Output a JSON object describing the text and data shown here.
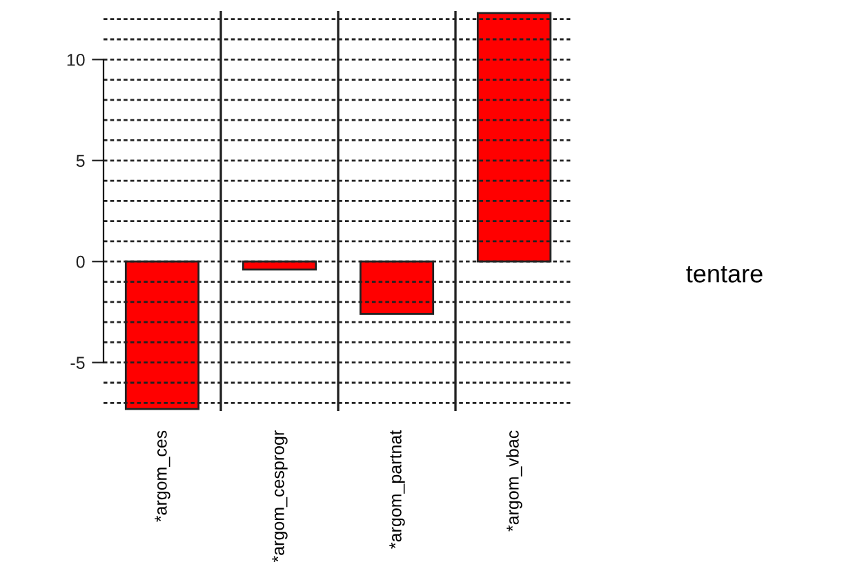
{
  "chart_data": {
    "type": "bar",
    "categories": [
      "*argom_ces",
      "*argom_cesprogr",
      "*argom_partnat",
      "*argom_vbac"
    ],
    "values": [
      -7.3,
      -0.4,
      -2.6,
      12.3
    ],
    "color": "#ff0000",
    "ylim": [
      -7.4,
      12.4
    ],
    "yticks": [
      -5,
      0,
      5,
      10
    ],
    "grid": false,
    "ref_lines": [
      {
        "axis": "y",
        "value": -7,
        "color": "#222222",
        "line_style": "dotted"
      },
      {
        "axis": "y",
        "value": -6,
        "color": "#222222",
        "line_style": "dotted"
      },
      {
        "axis": "y",
        "value": -5,
        "color": "#222222",
        "line_style": "dotted"
      },
      {
        "axis": "y",
        "value": -4,
        "color": "#222222",
        "line_style": "dotted"
      },
      {
        "axis": "y",
        "value": -3,
        "color": "#222222",
        "line_style": "dotted"
      },
      {
        "axis": "y",
        "value": -2,
        "color": "#222222",
        "line_style": "dotted"
      },
      {
        "axis": "y",
        "value": -1,
        "color": "#222222",
        "line_style": "dotted"
      },
      {
        "axis": "y",
        "value": 0,
        "color": "#222222",
        "line_style": "dotted"
      },
      {
        "axis": "y",
        "value": 1,
        "color": "#222222",
        "line_style": "dotted"
      },
      {
        "axis": "y",
        "value": 2,
        "color": "#222222",
        "line_style": "dotted"
      },
      {
        "axis": "y",
        "value": 3,
        "color": "#222222",
        "line_style": "dotted"
      },
      {
        "axis": "y",
        "value": 4,
        "color": "#222222",
        "line_style": "dotted"
      },
      {
        "axis": "y",
        "value": 5,
        "color": "#222222",
        "line_style": "dotted"
      },
      {
        "axis": "y",
        "value": 6,
        "color": "#222222",
        "line_style": "dotted"
      },
      {
        "axis": "y",
        "value": 7,
        "color": "#222222",
        "line_style": "dotted"
      },
      {
        "axis": "y",
        "value": 8,
        "color": "#222222",
        "line_style": "dotted"
      },
      {
        "axis": "y",
        "value": 9,
        "color": "#222222",
        "line_style": "dotted"
      },
      {
        "axis": "y",
        "value": 10,
        "color": "#222222",
        "line_style": "dotted"
      },
      {
        "axis": "y",
        "value": 11,
        "color": "#222222",
        "line_style": "dotted"
      },
      {
        "axis": "y",
        "value": 12,
        "color": "#222222",
        "line_style": "dotted"
      }
    ],
    "annotations": [
      "tentare"
    ]
  }
}
